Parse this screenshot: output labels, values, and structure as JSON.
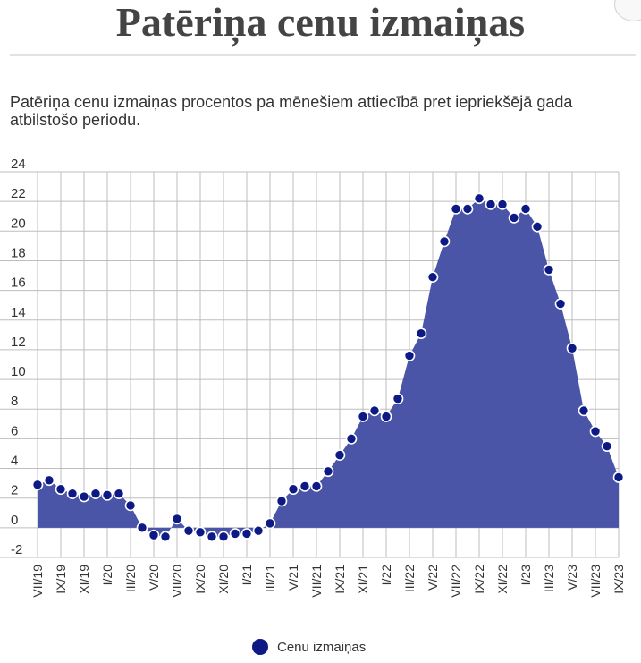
{
  "page": {
    "title": "Patēriņa cenu izmaiņas",
    "subtitle": "Patēriņa cenu izmaiņas procentos pa mēnešiem attiecībā pret iepriekšējā gada atbilstošo periodu."
  },
  "colors": {
    "area": "#4a55a8",
    "marker": "#0d1a86",
    "grid": "#bdbdbd"
  },
  "chart_data": {
    "type": "area",
    "title": "",
    "xlabel": "",
    "ylabel": "",
    "ylim": [
      -2,
      24
    ],
    "yticks": [
      -2,
      0,
      2,
      4,
      6,
      8,
      10,
      12,
      14,
      16,
      18,
      20,
      22,
      24
    ],
    "grid": true,
    "legend_position": "bottom-center",
    "categories": [
      "VII/19",
      "VIII/19",
      "IX/19",
      "X/19",
      "XI/19",
      "XII/19",
      "I/20",
      "II/20",
      "III/20",
      "IV/20",
      "V/20",
      "VI/20",
      "VII/20",
      "VIII/20",
      "IX/20",
      "X/20",
      "XI/20",
      "XII/20",
      "I/21",
      "II/21",
      "III/21",
      "IV/21",
      "V/21",
      "VI/21",
      "VII/21",
      "VIII/21",
      "IX/21",
      "X/21",
      "XI/21",
      "XII/21",
      "I/22",
      "II/22",
      "III/22",
      "IV/22",
      "V/22",
      "VI/22",
      "VII/22",
      "VIII/22",
      "IX/22",
      "X/22",
      "XI/22",
      "XII/22",
      "I/23",
      "II/23",
      "III/23",
      "IV/23",
      "V/23",
      "VI/23",
      "VII/23",
      "VIII/23",
      "IX/23"
    ],
    "tick_labels": [
      "VII/19",
      "IX/19",
      "XI/19",
      "I/20",
      "III/20",
      "V/20",
      "VII/20",
      "IX/20",
      "XI/20",
      "I/21",
      "III/21",
      "V/21",
      "VII/21",
      "IX/21",
      "XI/21",
      "I/22",
      "III/22",
      "V/22",
      "VII/22",
      "IX/22",
      "XI/22",
      "I/23",
      "III/23",
      "V/23",
      "VII/23",
      "IX/23"
    ],
    "series": [
      {
        "name": "Cenu izmaiņas",
        "values": [
          2.9,
          3.2,
          2.6,
          2.3,
          2.1,
          2.3,
          2.2,
          2.3,
          1.5,
          0.0,
          -0.5,
          -0.6,
          0.6,
          -0.2,
          -0.3,
          -0.6,
          -0.6,
          -0.4,
          -0.4,
          -0.2,
          0.3,
          1.8,
          2.6,
          2.8,
          2.8,
          3.8,
          4.9,
          6.0,
          7.5,
          7.9,
          7.5,
          8.7,
          11.6,
          13.1,
          16.9,
          19.3,
          21.5,
          21.5,
          22.2,
          21.8,
          21.8,
          20.9,
          21.5,
          20.3,
          17.4,
          15.1,
          12.1,
          7.9,
          6.5,
          5.5,
          3.4
        ]
      }
    ]
  }
}
